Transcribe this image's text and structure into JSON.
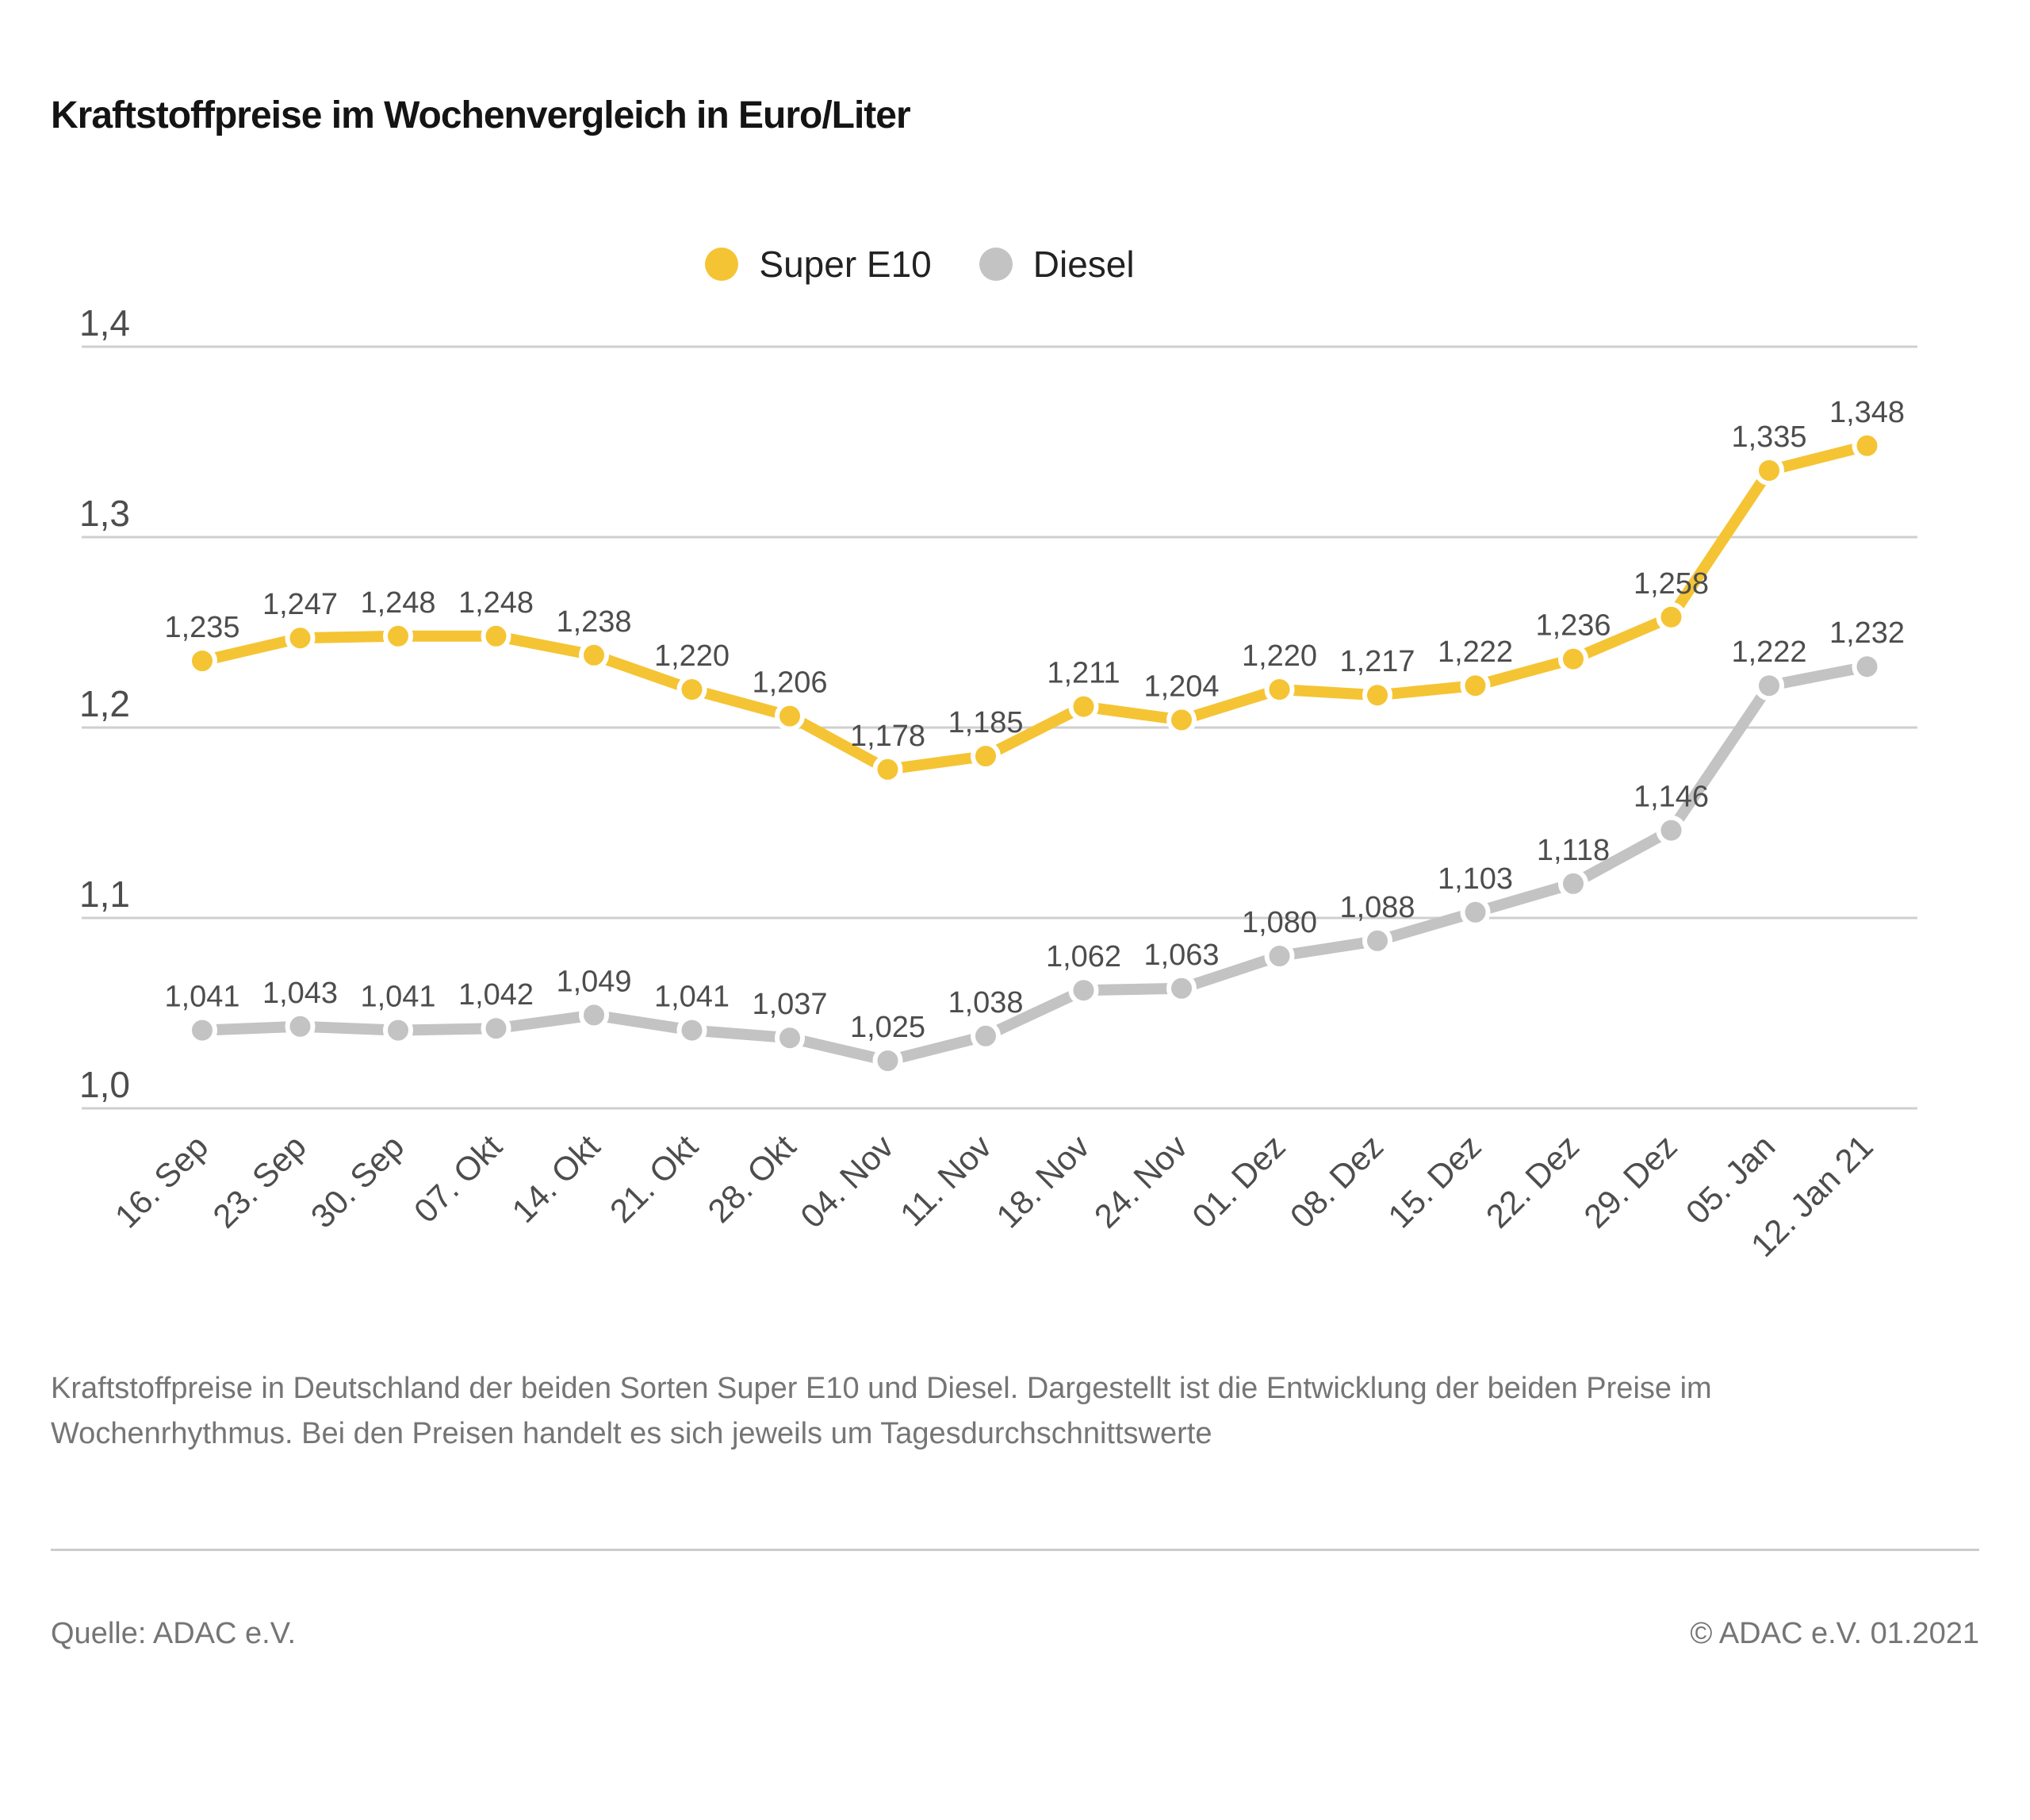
{
  "title": "Kraftstoffpreise im Wochenvergleich in Euro/Liter",
  "chart_data": {
    "type": "line",
    "title": "Kraftstoffpreise im Wochenvergleich in Euro/Liter",
    "unit": "Euro/Liter",
    "categories": [
      "16. Sep",
      "23. Sep",
      "30. Sep",
      "07. Okt",
      "14. Okt",
      "21. Okt",
      "28. Okt",
      "04. Nov",
      "11. Nov",
      "18. Nov",
      "24. Nov",
      "01. Dez",
      "08. Dez",
      "15. Dez",
      "22. Dez",
      "29. Dez",
      "05. Jan",
      "12. Jan 21"
    ],
    "series": [
      {
        "name": "Super E10",
        "color": "#F5C434",
        "values": [
          1.235,
          1.247,
          1.248,
          1.248,
          1.238,
          1.22,
          1.206,
          1.178,
          1.185,
          1.211,
          1.204,
          1.22,
          1.217,
          1.222,
          1.236,
          1.258,
          1.335,
          1.348
        ]
      },
      {
        "name": "Diesel",
        "color": "#C3C3C3",
        "values": [
          1.041,
          1.043,
          1.041,
          1.042,
          1.049,
          1.041,
          1.037,
          1.025,
          1.038,
          1.062,
          1.063,
          1.08,
          1.088,
          1.103,
          1.118,
          1.146,
          1.222,
          1.232
        ]
      }
    ],
    "ylim": [
      1.0,
      1.4
    ],
    "yticks": [
      "1,4",
      "1,3",
      "1,2",
      "1,1",
      "1,0"
    ],
    "grid": true,
    "legend_position": "top-center",
    "gridline_color": "#CFCFCF",
    "label_color": "#4D4D4D"
  },
  "caption": {
    "line1": "Kraftstoffpreise in Deutschland der beiden Sorten Super E10 und Diesel. Dargestellt ist die Entwicklung der beiden Preise im",
    "line2": "Wochenrhythmus. Bei den Preisen handelt es sich jeweils um Tagesdurchschnittswerte"
  },
  "footer": {
    "source": "Quelle: ADAC e.V.",
    "copyright": "© ADAC e.V. 01.2021"
  }
}
